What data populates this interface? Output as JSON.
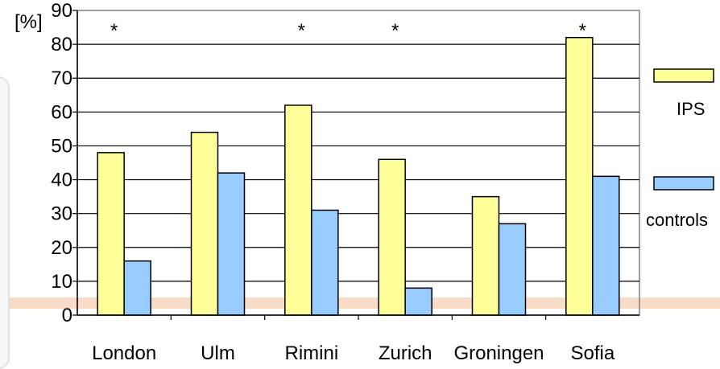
{
  "chart_data": {
    "type": "bar",
    "ylabel": "[%]",
    "ylim": [
      0,
      90
    ],
    "yticks": [
      0,
      10,
      20,
      30,
      40,
      50,
      60,
      70,
      80,
      90
    ],
    "grid": true,
    "legend_position": "right",
    "categories": [
      "London",
      "Ulm",
      "Rimini",
      "Zurich",
      "Groningen",
      "Sofia"
    ],
    "series": [
      {
        "name": "IPS",
        "color": "#ffff99",
        "values": [
          48,
          54,
          62,
          46,
          35,
          82
        ]
      },
      {
        "name": "controls",
        "color": "#99ccff",
        "values": [
          16,
          42,
          31,
          8,
          27,
          41
        ]
      }
    ],
    "annotations": [
      "*",
      "",
      "*",
      "*",
      "",
      "*"
    ]
  }
}
